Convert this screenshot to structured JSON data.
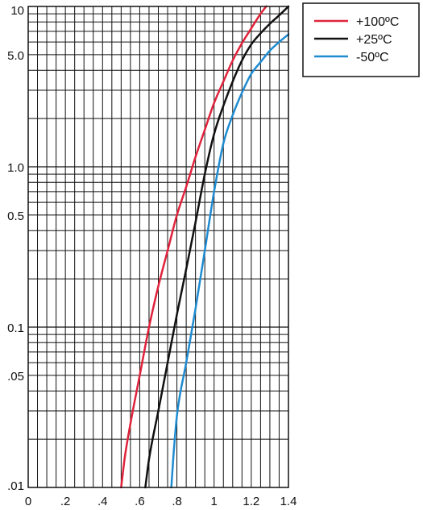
{
  "chart_data": {
    "type": "line",
    "title": "",
    "xlabel": "",
    "ylabel": "",
    "xlim": [
      0,
      1.4
    ],
    "ylim": [
      0.01,
      10
    ],
    "y_scale": "log",
    "grid": true,
    "legend_position": "top-right",
    "x_ticks": [
      {
        "value": 0,
        "label": "0"
      },
      {
        "value": 0.2,
        "label": ".2"
      },
      {
        "value": 0.4,
        "label": ".4"
      },
      {
        "value": 0.6,
        "label": ".6"
      },
      {
        "value": 0.8,
        "label": ".8"
      },
      {
        "value": 1.0,
        "label": "1"
      },
      {
        "value": 1.2,
        "label": "1.2"
      },
      {
        "value": 1.4,
        "label": "1.4"
      }
    ],
    "y_ticks": [
      {
        "value": 10,
        "label": "10"
      },
      {
        "value": 5,
        "label": "5.0"
      },
      {
        "value": 1,
        "label": "1.0"
      },
      {
        "value": 0.5,
        "label": "0.5"
      },
      {
        "value": 0.1,
        "label": "0.1"
      },
      {
        "value": 0.05,
        "label": ".05"
      },
      {
        "value": 0.01,
        "label": ".01"
      }
    ],
    "series": [
      {
        "name": "+100ºC",
        "color": "#e0233c",
        "x": [
          0.5,
          0.52,
          0.55,
          0.6,
          0.65,
          0.7,
          0.75,
          0.8,
          0.85,
          0.9,
          0.95,
          1.0,
          1.05,
          1.1,
          1.15,
          1.2,
          1.25,
          1.28
        ],
        "y": [
          0.01,
          0.0155,
          0.025,
          0.05,
          0.1,
          0.18,
          0.3,
          0.5,
          0.75,
          1.15,
          1.7,
          2.5,
          3.4,
          4.6,
          5.9,
          7.3,
          9.0,
          10
        ]
      },
      {
        "name": "+25ºC",
        "color": "#111111",
        "x": [
          0.63,
          0.65,
          0.7,
          0.75,
          0.8,
          0.85,
          0.9,
          0.95,
          1.0,
          1.05,
          1.1,
          1.15,
          1.2,
          1.25,
          1.3,
          1.35,
          1.4
        ],
        "y": [
          0.01,
          0.015,
          0.03,
          0.06,
          0.12,
          0.23,
          0.45,
          0.9,
          1.6,
          2.4,
          3.4,
          4.6,
          5.8,
          6.8,
          7.8,
          8.8,
          10
        ]
      },
      {
        "name": "-50ºC",
        "color": "#1f8bd0",
        "x": [
          0.77,
          0.78,
          0.8,
          0.85,
          0.9,
          0.95,
          1.0,
          1.05,
          1.1,
          1.15,
          1.2,
          1.25,
          1.3,
          1.35,
          1.4
        ],
        "y": [
          0.01,
          0.015,
          0.028,
          0.06,
          0.13,
          0.3,
          0.7,
          1.4,
          2.1,
          2.9,
          3.8,
          4.5,
          5.3,
          6.0,
          6.7
        ]
      }
    ]
  }
}
